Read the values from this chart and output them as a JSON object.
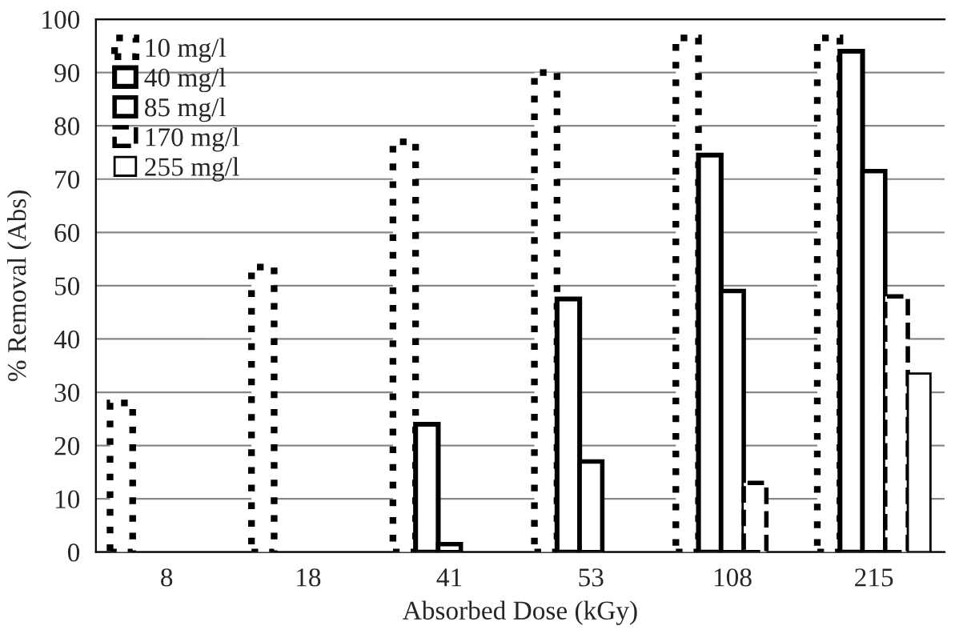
{
  "chart_data": {
    "type": "bar",
    "xlabel": "Absorbed Dose (kGy)",
    "ylabel": "% Removal (Abs)",
    "categories": [
      "8",
      "18",
      "41",
      "53",
      "108",
      "215"
    ],
    "series": [
      {
        "name": "10 mg/l",
        "color": "#ffffff",
        "line_style": "dotted",
        "values": [
          28,
          53.5,
          77,
          90,
          96.5,
          96.5
        ]
      },
      {
        "name": "40 mg/l",
        "color": "#ffffff",
        "line_style": "solid",
        "values": [
          null,
          null,
          24,
          47.5,
          74.5,
          94
        ]
      },
      {
        "name": "85 mg/l",
        "color": "#ffffff",
        "line_style": "solid",
        "values": [
          null,
          null,
          1.5,
          17,
          49,
          71.5
        ]
      },
      {
        "name": "170 mg/l",
        "color": "#ffffff",
        "line_style": "dashed",
        "values": [
          null,
          null,
          null,
          null,
          13,
          48
        ]
      },
      {
        "name": "255 mg/l",
        "color": "#ffffff",
        "line_style": "solid",
        "values": [
          null,
          null,
          null,
          null,
          null,
          33.5
        ]
      }
    ],
    "ylim": [
      0,
      100
    ],
    "yticks": [
      0,
      10,
      20,
      30,
      40,
      50,
      60,
      70,
      80,
      90,
      100
    ],
    "grid": "y",
    "legend": "top left"
  }
}
